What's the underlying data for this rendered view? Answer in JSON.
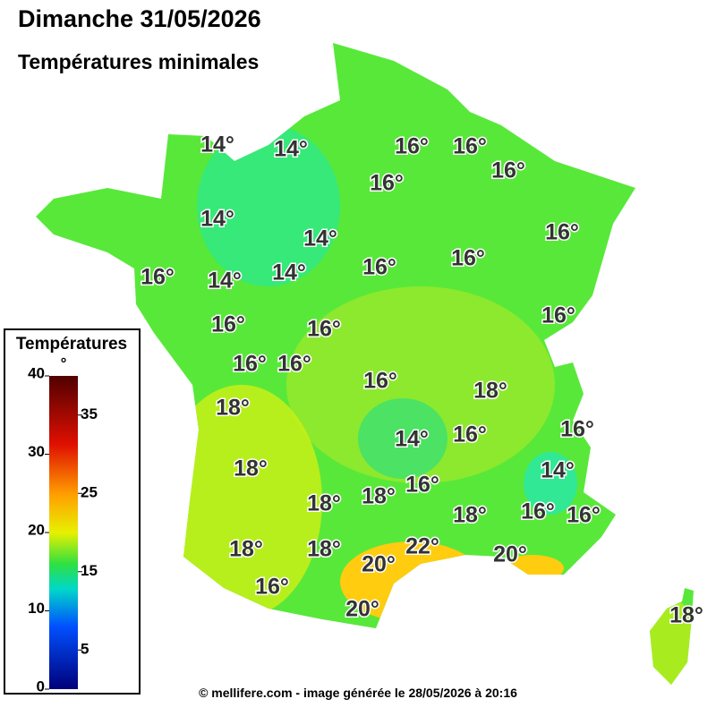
{
  "header": {
    "title": "Dimanche 31/05/2026",
    "subtitle": "Températures minimales"
  },
  "legend": {
    "title": "Températures",
    "unit": "°",
    "ticks": [
      0,
      5,
      10,
      15,
      20,
      25,
      30,
      35,
      40
    ]
  },
  "labels": [
    "14°",
    "14°",
    "16°",
    "16°",
    "16°",
    "16°",
    "14°",
    "14°",
    "16°",
    "16°",
    "14°",
    "14°",
    "16°",
    "16°",
    "16°",
    "16°",
    "16°",
    "16°",
    "16°",
    "16°",
    "18°",
    "18°",
    "14°",
    "16°",
    "16°",
    "18°",
    "14°",
    "16°",
    "18°",
    "18°",
    "18°",
    "16°",
    "16°",
    "18°",
    "18°",
    "22°",
    "20°",
    "20°",
    "16°",
    "20°",
    "18°"
  ],
  "footer": "© mellifere.com - image générée le 28/05/2026 à 20:16"
}
